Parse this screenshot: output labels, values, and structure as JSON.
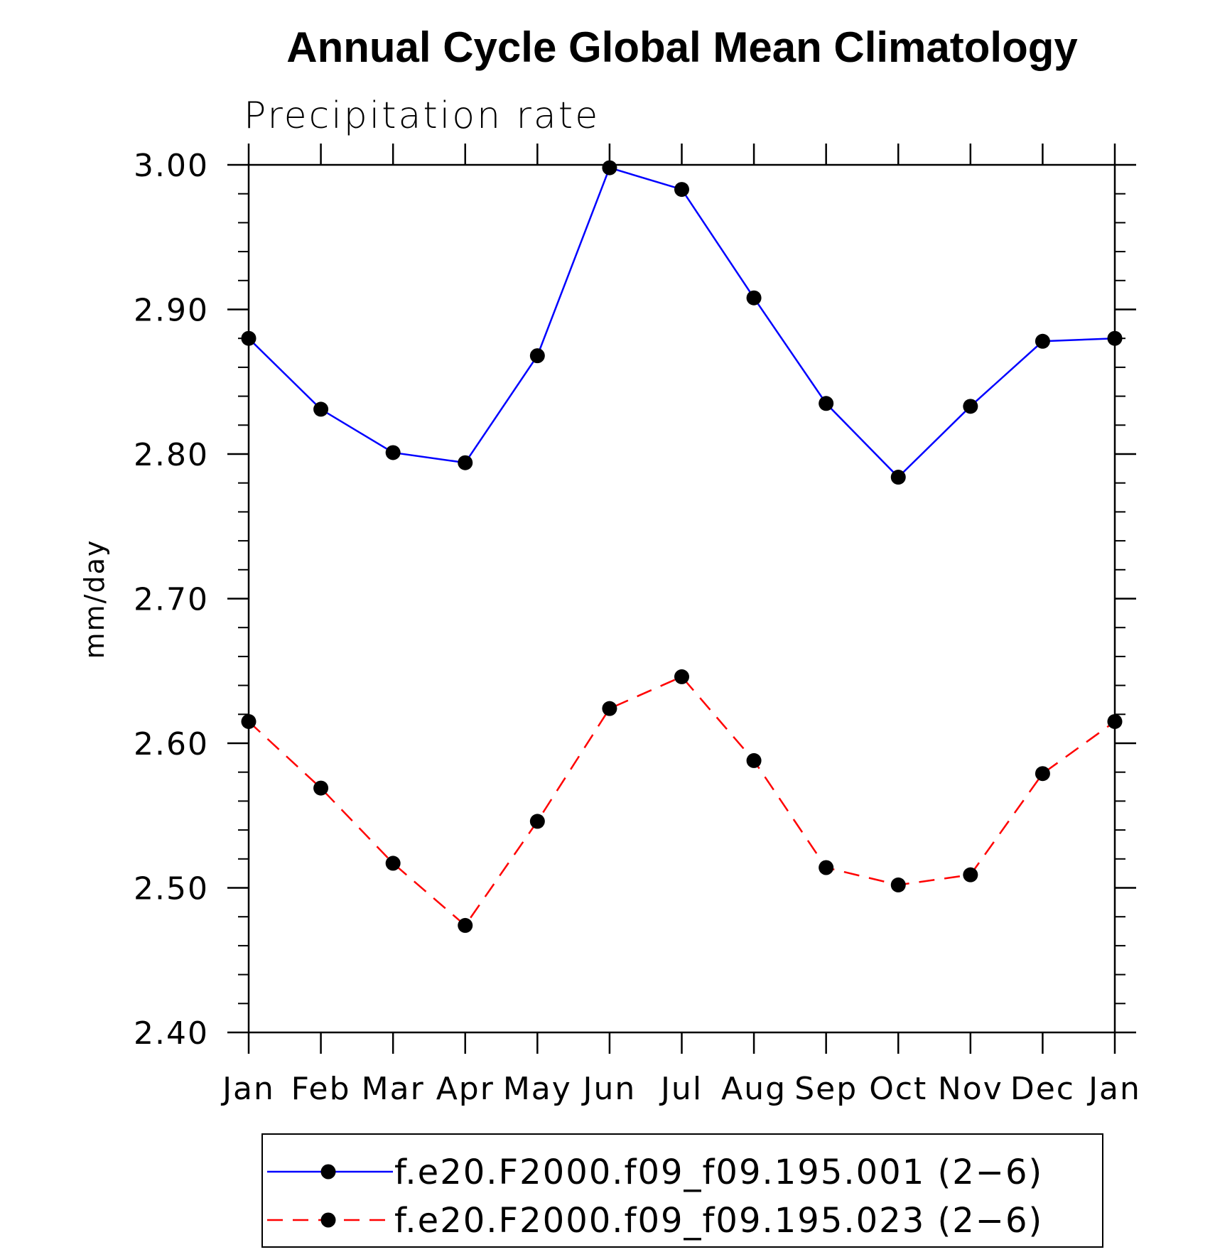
{
  "chart_data": {
    "type": "line",
    "title": "Annual Cycle Global Mean Climatology",
    "subtitle": "Precipitation rate",
    "xlabel": "",
    "ylabel": "mm/day",
    "categories": [
      "Jan",
      "Feb",
      "Mar",
      "Apr",
      "May",
      "Jun",
      "Jul",
      "Aug",
      "Sep",
      "Oct",
      "Nov",
      "Dec",
      "Jan"
    ],
    "ylim": [
      2.4,
      3.0
    ],
    "yticks": [
      "2.40",
      "2.50",
      "2.60",
      "2.70",
      "2.80",
      "2.90",
      "3.00"
    ],
    "grid": false,
    "legend_position": "bottom",
    "series": [
      {
        "name": "f.e20.F2000.f09_f09.195.001 (2−6)",
        "color": "#0000ff",
        "dash": "solid",
        "marker": "filled-circle",
        "values": [
          2.88,
          2.831,
          2.801,
          2.794,
          2.868,
          2.998,
          2.983,
          2.908,
          2.835,
          2.784,
          2.833,
          2.878,
          2.88
        ]
      },
      {
        "name": "f.e20.F2000.f09_f09.195.023 (2−6)",
        "color": "#ff0000",
        "dash": "dashed",
        "marker": "filled-circle",
        "values": [
          2.615,
          2.569,
          2.517,
          2.474,
          2.546,
          2.624,
          2.646,
          2.588,
          2.514,
          2.502,
          2.509,
          2.579,
          2.615
        ]
      }
    ]
  }
}
